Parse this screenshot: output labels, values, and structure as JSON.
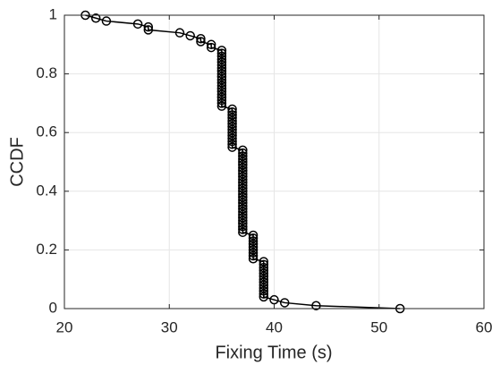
{
  "chart_data": {
    "type": "line",
    "x_label": "Fixing Time (s)",
    "y_label": "CCDF",
    "xlim": [
      20,
      60
    ],
    "xticks": [
      20,
      30,
      40,
      50,
      60
    ],
    "ylim": [
      0,
      1
    ],
    "yticks": [
      0,
      0.2,
      0.4,
      0.6,
      0.8,
      1
    ],
    "grid": true,
    "color": "#000000",
    "marker": "circle",
    "x": [
      22,
      23,
      24,
      27,
      28,
      28,
      31,
      32,
      33,
      33,
      34,
      34,
      35,
      35,
      35,
      35,
      35,
      35,
      35,
      35,
      35,
      35,
      35,
      35,
      35,
      35,
      35,
      35,
      35,
      35,
      35,
      35,
      36,
      36,
      36,
      36,
      36,
      36,
      36,
      36,
      36,
      36,
      36,
      36,
      36,
      36,
      37,
      37,
      37,
      37,
      37,
      37,
      37,
      37,
      37,
      37,
      37,
      37,
      37,
      37,
      37,
      37,
      37,
      37,
      37,
      37,
      37,
      37,
      37,
      37,
      37,
      37,
      37,
      37,
      37,
      38,
      38,
      38,
      38,
      38,
      38,
      38,
      38,
      38,
      39,
      39,
      39,
      39,
      39,
      39,
      39,
      39,
      39,
      39,
      39,
      39,
      39,
      40,
      41,
      44,
      52
    ],
    "values": [
      1,
      0.99,
      0.98,
      0.97,
      0.96,
      0.95,
      0.94,
      0.93,
      0.92,
      0.91,
      0.9,
      0.89,
      0.88,
      0.87,
      0.86,
      0.85,
      0.84,
      0.83,
      0.82,
      0.81,
      0.8,
      0.79,
      0.78,
      0.77,
      0.76,
      0.75,
      0.74,
      0.73,
      0.72,
      0.71,
      0.7,
      0.69,
      0.68,
      0.67,
      0.66,
      0.65,
      0.64,
      0.63,
      0.62,
      0.61,
      0.6,
      0.59,
      0.58,
      0.57,
      0.56,
      0.55,
      0.54,
      0.53,
      0.52,
      0.51,
      0.5,
      0.49,
      0.48,
      0.47,
      0.46,
      0.45,
      0.44,
      0.43,
      0.42,
      0.41,
      0.4,
      0.39,
      0.38,
      0.37,
      0.36,
      0.35,
      0.34,
      0.33,
      0.32,
      0.31,
      0.3,
      0.29,
      0.28,
      0.27,
      0.26,
      0.25,
      0.24,
      0.23,
      0.22,
      0.21,
      0.2,
      0.19,
      0.18,
      0.17,
      0.16,
      0.15,
      0.14,
      0.13,
      0.12,
      0.11,
      0.1,
      0.09,
      0.08,
      0.07,
      0.06,
      0.05,
      0.04,
      0.03,
      0.02,
      0.01,
      0
    ]
  }
}
